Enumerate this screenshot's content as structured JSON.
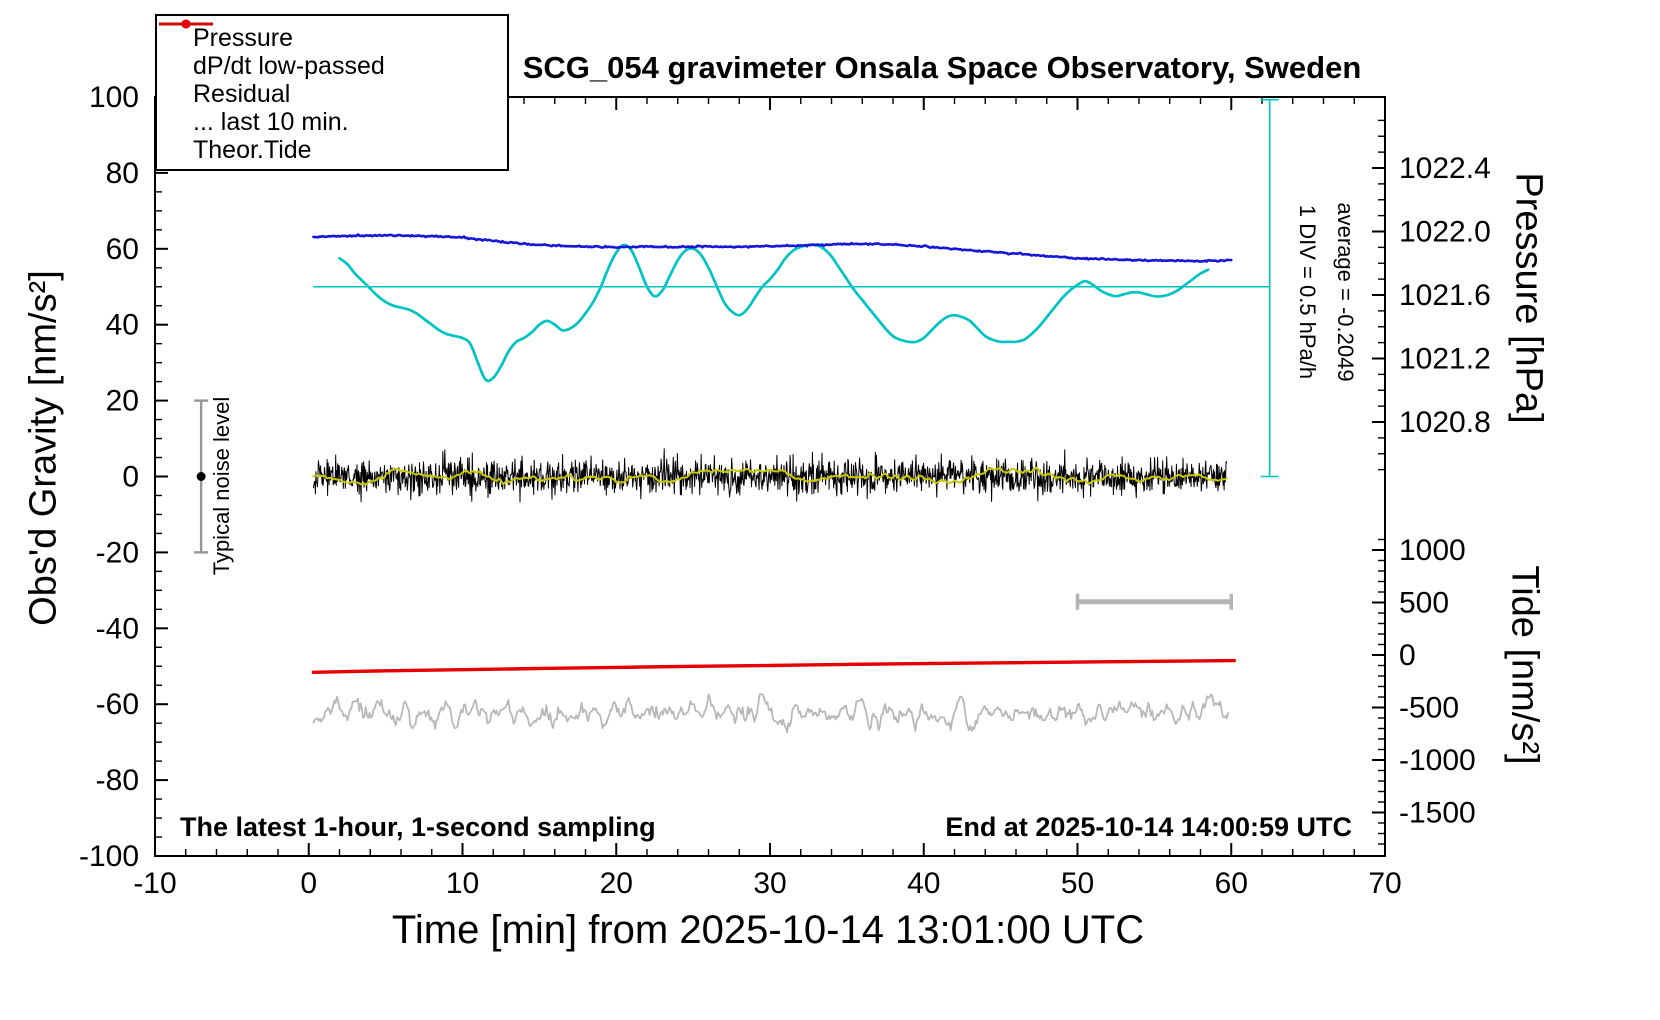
{
  "title": "SCG_054 gravimeter Onsala Space Observatory, Sweden",
  "xlabel": "Time [min] from 2025-10-14 13:01:00 UTC",
  "footer_left": "The latest 1-hour, 1-second sampling",
  "footer_right": "End at 2025-10-14 14:00:59 UTC",
  "axes": {
    "x": {
      "ticks": [
        -10,
        0,
        10,
        20,
        30,
        40,
        50,
        60,
        70
      ],
      "minor_step": 2,
      "range": [
        -10,
        70
      ]
    },
    "gravity": {
      "title": "Obs'd Gravity [nm/s²]",
      "ticks": [
        -100,
        -80,
        -60,
        -40,
        -20,
        0,
        20,
        40,
        60,
        80,
        100
      ],
      "minor_step": 5,
      "range": [
        -100,
        100
      ]
    },
    "pressure": {
      "title": "Pressure [hPa]",
      "ticks": [
        1020.8,
        1021.2,
        1021.6,
        1022.0,
        1022.4
      ],
      "minor_step": 0.1
    },
    "tide": {
      "title": "Tide [nm/s²]",
      "ticks": [
        1000,
        500,
        0,
        -500,
        -1000,
        -1500
      ],
      "minor_step": 100
    }
  },
  "legend": [
    {
      "label": "Pressure",
      "color": "#1616d8",
      "dot": true
    },
    {
      "label": "dP/dt low-passed",
      "color": "#00c3c3",
      "dot": true
    },
    {
      "label": "Residual",
      "color": "#000000",
      "dot": false
    },
    {
      "label": "... last 10 min.",
      "color": "#b8b8b8",
      "dot": false
    },
    {
      "label": "Theor.Tide",
      "color": "#e60000",
      "dot": true
    }
  ],
  "annotations": {
    "div_note": "1 DIV = 0.5 hPa/h",
    "average_note": "average = -0.2049",
    "noise_label": "Typical noise level"
  },
  "chart_data": {
    "type": "line",
    "title": "SCG_054 gravimeter Onsala Space Observatory, Sweden",
    "xlabel": "Time [min] from 2025-10-14 13:01:00 UTC",
    "x_range": [
      -10,
      70
    ],
    "gravity_range": [
      -100,
      100
    ],
    "pressure_tick_values": [
      1020.8,
      1021.2,
      1021.6,
      1022.0,
      1022.4
    ],
    "tide_tick_values": [
      1000,
      500,
      0,
      -500,
      -1000,
      -1500
    ],
    "reference_lines": {
      "color": "#00c3c3",
      "dpdt_zero_gravity_units": 50,
      "dpdt_axis_x": 62.5,
      "dpdt_axis_top_gravity": 99.3,
      "dpdt_axis_bottom_gravity": 0
    },
    "noise_level_bar": {
      "x": -7,
      "from": -20,
      "to": 20,
      "center": 0
    },
    "window_bar": {
      "x_from": 50,
      "x_to": 60,
      "y_gravity": -33
    },
    "series": [
      {
        "name": "Pressure",
        "axis": "pressure",
        "unit": "hPa",
        "color": "#1616d8",
        "t_start": 0,
        "t_step": 1,
        "jitter": 0.0025,
        "seed": 5,
        "values": [
          1021.965,
          1021.968,
          1021.97,
          1021.972,
          1021.975,
          1021.975,
          1021.974,
          1021.972,
          1021.97,
          1021.968,
          1021.962,
          1021.952,
          1021.942,
          1021.93,
          1021.922,
          1021.916,
          1021.912,
          1021.908,
          1021.905,
          1021.903,
          1021.9,
          1021.902,
          1021.905,
          1021.904,
          1021.903,
          1021.905,
          1021.906,
          1021.905,
          1021.904,
          1021.906,
          1021.908,
          1021.91,
          1021.912,
          1021.915,
          1021.918,
          1021.92,
          1021.922,
          1021.921,
          1021.918,
          1021.912,
          1021.905,
          1021.898,
          1021.89,
          1021.882,
          1021.875,
          1021.868,
          1021.86,
          1021.852,
          1021.845,
          1021.838,
          1021.832,
          1021.828,
          1021.825,
          1021.822,
          1021.82,
          1021.818,
          1021.816,
          1021.815,
          1021.814,
          1021.815,
          1021.818
        ]
      },
      {
        "name": "dP/dt low-passed",
        "axis": "gravity",
        "color": "#00c3c3",
        "zero_level_gravity": 50,
        "div_note": "1 DIV = 0.5 hPa/h",
        "average_hpa_per_h": -0.2049,
        "t_start": 2,
        "t_step": 0.5,
        "values": [
          57.5,
          56,
          53.5,
          51.5,
          49.5,
          47.5,
          46,
          45,
          44.5,
          44,
          43,
          41.5,
          40,
          38.5,
          37.5,
          37,
          36.5,
          35,
          30,
          25.5,
          26,
          29,
          33,
          35.5,
          36.5,
          38,
          40,
          41,
          40,
          38.5,
          39,
          40.5,
          43,
          46,
          50,
          55,
          59,
          61,
          59.5,
          55,
          50,
          47.5,
          49,
          53,
          57,
          59.5,
          60,
          58.5,
          55,
          50.5,
          46,
          43.5,
          42.5,
          44,
          47,
          50,
          52,
          54.5,
          57.5,
          59.5,
          60.5,
          61,
          61,
          60,
          58,
          55,
          52,
          49,
          46.5,
          44,
          41.5,
          39,
          37,
          36,
          35.5,
          35.5,
          36.5,
          38.5,
          40.5,
          42,
          42.5,
          42,
          41,
          39,
          37,
          36,
          35.5,
          35.5,
          35.5,
          36,
          37.5,
          39.5,
          42,
          44.5,
          47,
          49,
          50.5,
          51.5,
          50.5,
          49,
          48,
          47.5,
          48,
          48.5,
          48.5,
          48,
          47.5,
          47.5,
          48,
          49,
          50.5,
          52,
          53.5,
          54.5
        ]
      },
      {
        "name": "Residual",
        "axis": "gravity",
        "color": "#000000",
        "representation": "noise",
        "mean": 0,
        "std": 2.3,
        "clip": 8.8,
        "seed": 42,
        "n": 1800,
        "t_start": 0.3,
        "t_end": 59.7
      },
      {
        "name": "Residual low-passed",
        "axis": "gravity",
        "color": "#c8c800",
        "representation": "smooth-noise",
        "mean": 0,
        "gain": 3.2,
        "smooth_w": 6,
        "clip": 2.4,
        "seed": 99,
        "n": 400,
        "t_start": 0.3,
        "t_end": 59.7
      },
      {
        "name": "... last 10 min.",
        "axis": "gravity",
        "color": "#b8b8b8",
        "representation": "smooth-noise",
        "mean": -62.4,
        "gain": 4.2,
        "smooth_w": 2,
        "clip": 5,
        "seed": 7,
        "n": 700,
        "t_start": 0.3,
        "t_end": 59.8
      },
      {
        "name": "Theor.Tide",
        "axis": "gravity",
        "color": "#e60000",
        "x": [
          0.3,
          5,
          10,
          15,
          20,
          25,
          30,
          35,
          40,
          45,
          50,
          55,
          60.2
        ],
        "values": [
          -51.6,
          -51.2,
          -50.9,
          -50.6,
          -50.3,
          -50.0,
          -49.8,
          -49.5,
          -49.3,
          -49.1,
          -48.9,
          -48.7,
          -48.5
        ]
      }
    ]
  }
}
